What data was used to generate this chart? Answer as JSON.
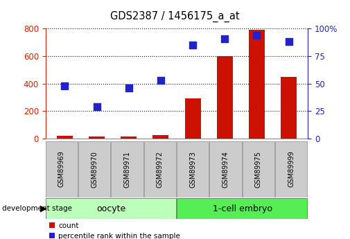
{
  "title": "GDS2387 / 1456175_a_at",
  "samples": [
    "GSM89969",
    "GSM89970",
    "GSM89971",
    "GSM89972",
    "GSM89973",
    "GSM89974",
    "GSM89975",
    "GSM89999"
  ],
  "count_values": [
    20,
    18,
    16,
    28,
    295,
    600,
    790,
    450
  ],
  "percentile_values": [
    48,
    29,
    46,
    53,
    85,
    91,
    94,
    88
  ],
  "groups": [
    {
      "label": "oocyte",
      "indices": [
        0,
        1,
        2,
        3
      ],
      "color": "#bbffbb"
    },
    {
      "label": "1-cell embryo",
      "indices": [
        4,
        5,
        6,
        7
      ],
      "color": "#55ee55"
    }
  ],
  "bar_color": "#cc1100",
  "dot_color": "#2222cc",
  "left_axis_color": "#cc2200",
  "right_axis_color": "#2222bb",
  "ylim_left": [
    0,
    800
  ],
  "ylim_right": [
    0,
    100
  ],
  "left_yticks": [
    0,
    200,
    400,
    600,
    800
  ],
  "right_yticks": [
    0,
    25,
    50,
    75,
    100
  ],
  "right_yticklabels": [
    "0",
    "25",
    "50",
    "75",
    "100%"
  ],
  "grid_color": "#111111",
  "background_color": "#ffffff",
  "bar_width": 0.5,
  "dot_size": 50,
  "tick_bg_color": "#cccccc",
  "legend_count_color": "#cc1100",
  "legend_pct_color": "#2222cc"
}
